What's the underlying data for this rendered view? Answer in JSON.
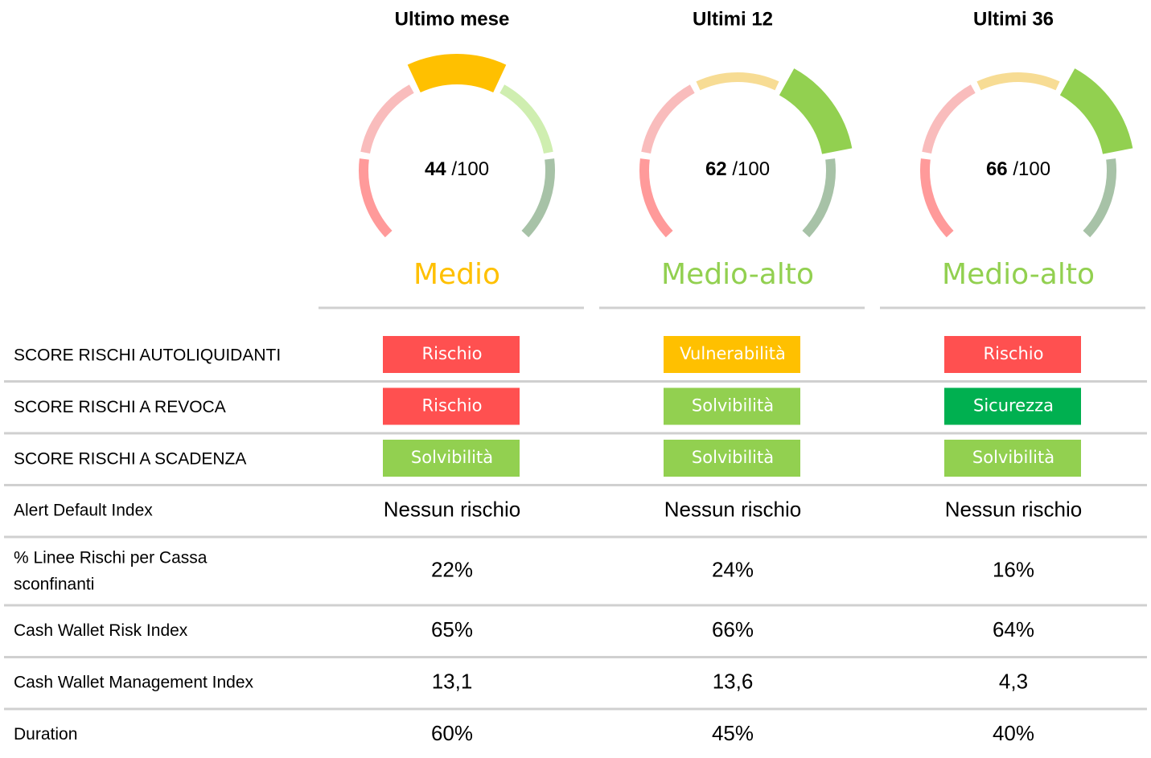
{
  "columns": [
    {
      "title": "Ultimo mese",
      "score": 44,
      "max_label": "/100",
      "rating": "Medio",
      "rating_color": "#ffc000"
    },
    {
      "title": "Ultimi 12",
      "score": 62,
      "max_label": "/100",
      "rating": "Medio-alto",
      "rating_color": "#92d050"
    },
    {
      "title": "Ultimi 36",
      "score": 66,
      "max_label": "/100",
      "rating": "Medio-alto",
      "rating_color": "#92d050"
    }
  ],
  "badge_rows": [
    {
      "label": "SCORE RISCHI AUTOLIQUIDANTI",
      "cells": [
        {
          "text": "Rischio",
          "color": "#ff5050"
        },
        {
          "text": "Vulnerabilità",
          "color": "#ffc000"
        },
        {
          "text": "Rischio",
          "color": "#ff5050"
        }
      ]
    },
    {
      "label": "SCORE RISCHI A REVOCA",
      "cells": [
        {
          "text": "Rischio",
          "color": "#ff5050"
        },
        {
          "text": "Solvibilità",
          "color": "#92d050"
        },
        {
          "text": "Sicurezza",
          "color": "#00b050"
        }
      ]
    },
    {
      "label": "SCORE RISCHI A SCADENZA",
      "cells": [
        {
          "text": "Solvibilità",
          "color": "#92d050"
        },
        {
          "text": "Solvibilità",
          "color": "#92d050"
        },
        {
          "text": "Solvibilità",
          "color": "#92d050"
        }
      ]
    }
  ],
  "text_rows": [
    {
      "label": "Alert Default Index",
      "cells": [
        "Nessun rischio",
        "Nessun rischio",
        "Nessun rischio"
      ]
    },
    {
      "label": "% Linee Rischi per Cassa sconfinanti",
      "cells": [
        "22%",
        "24%",
        "16%"
      ]
    },
    {
      "label": "Cash Wallet Risk Index",
      "cells": [
        "65%",
        "66%",
        "64%"
      ]
    },
    {
      "label": "Cash Wallet Management Index",
      "cells": [
        "13,1",
        "13,6",
        "4,3"
      ]
    },
    {
      "label": "Duration",
      "cells": [
        "60%",
        "45%",
        "40%"
      ]
    }
  ]
}
